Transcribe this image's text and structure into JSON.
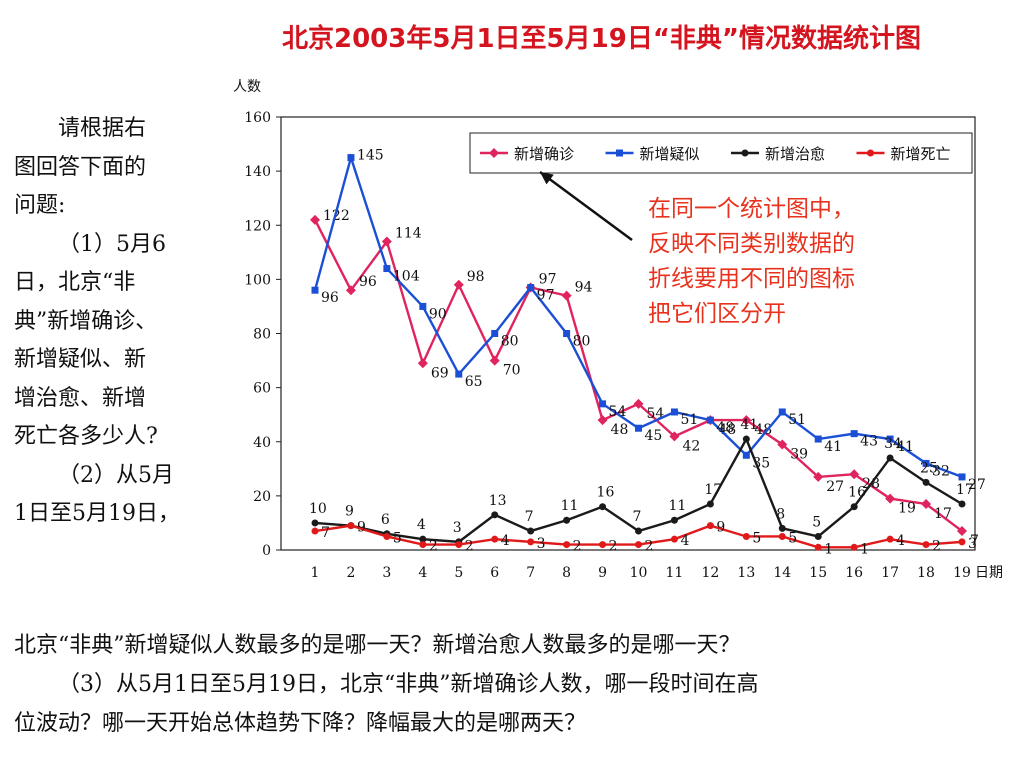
{
  "title": "北京2003年5月1日至5月19日“非典”情况数据统计图",
  "question_side": [
    "请根据右",
    "图回答下面的",
    "问题:",
    "（1）5月6",
    "日，北京“非",
    "典”新增确诊、",
    "新增疑似、新",
    "增治愈、新增",
    "死亡各多少人?",
    "（2）从5月",
    "1日至5月19日，"
  ],
  "question_bottom": [
    "北京“非典”新增疑似人数最多的是哪一天？新增治愈人数最多的是哪一天？",
    "（3）从5月1日至5月19日，北京“非典”新增确诊人数，哪一段时间在高",
    "位波动？哪一天开始总体趋势下降？降幅最大的是哪两天？"
  ],
  "callout": [
    "在同一个统计图中，",
    "反映不同类别数据的",
    "折线要用不同的图标",
    "把它们区分开"
  ],
  "colors": {
    "title": "#d4141e",
    "callout": "#e8321e",
    "confirmed": "#e0245e",
    "suspected": "#1a4fd6",
    "cured": "#1a1a1a",
    "deaths": "#e01a1a"
  },
  "chart_data": {
    "type": "line",
    "ylabel": "人数",
    "xlabel": "日期",
    "x": [
      1,
      2,
      3,
      4,
      5,
      6,
      7,
      8,
      9,
      10,
      11,
      12,
      13,
      14,
      15,
      16,
      17,
      18,
      19
    ],
    "ylim": [
      0,
      160
    ],
    "yticks": [
      0,
      20,
      40,
      60,
      80,
      100,
      120,
      140,
      160
    ],
    "legend_position": "top-right",
    "series": [
      {
        "name": "新增确诊",
        "color": "#e0245e",
        "marker": "diamond",
        "values": [
          122,
          96,
          114,
          69,
          98,
          70,
          97,
          94,
          48,
          54,
          42,
          48,
          48,
          39,
          27,
          28,
          19,
          17,
          7
        ]
      },
      {
        "name": "新增疑似",
        "color": "#1a4fd6",
        "marker": "square",
        "values": [
          96,
          145,
          104,
          90,
          65,
          80,
          97,
          80,
          54,
          45,
          51,
          48,
          35,
          51,
          41,
          43,
          41,
          32,
          27
        ]
      },
      {
        "name": "新增治愈",
        "color": "#1a1a1a",
        "marker": "circle",
        "values": [
          10,
          9,
          6,
          4,
          3,
          13,
          7,
          11,
          16,
          7,
          11,
          17,
          41,
          8,
          5,
          16,
          34,
          25,
          17
        ]
      },
      {
        "name": "新增死亡",
        "color": "#e01a1a",
        "marker": "circle",
        "values": [
          7,
          9,
          5,
          2,
          2,
          4,
          3,
          2,
          2,
          2,
          4,
          9,
          5,
          5,
          1,
          1,
          4,
          2,
          3
        ]
      }
    ]
  }
}
